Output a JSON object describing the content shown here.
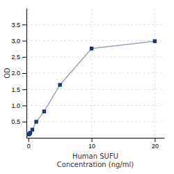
{
  "chart_data": {
    "type": "line",
    "xlabel": "Human SUFU\nConcentration (ng/ml)",
    "ylabel": "OD",
    "x": [
      0,
      0.156,
      0.312,
      0.625,
      1.25,
      2.5,
      5,
      10,
      20
    ],
    "values": [
      0.106,
      0.118,
      0.154,
      0.252,
      0.496,
      0.814,
      1.635,
      2.758,
      2.986
    ],
    "color": "#1a3a6b",
    "marker": "square",
    "xlim": [
      -0.3,
      21.5
    ],
    "ylim": [
      0,
      4.0
    ],
    "xticks": [
      0,
      10,
      20
    ],
    "yticks": [
      0.5,
      {
        "value": 1.0,
        "label": "1.0"
      },
      1.5,
      {
        "value": 2.0,
        "label": "2.0"
      },
      2.5,
      {
        "value": 3.0,
        "label": "3.0"
      },
      3.5
    ],
    "grid": true
  }
}
